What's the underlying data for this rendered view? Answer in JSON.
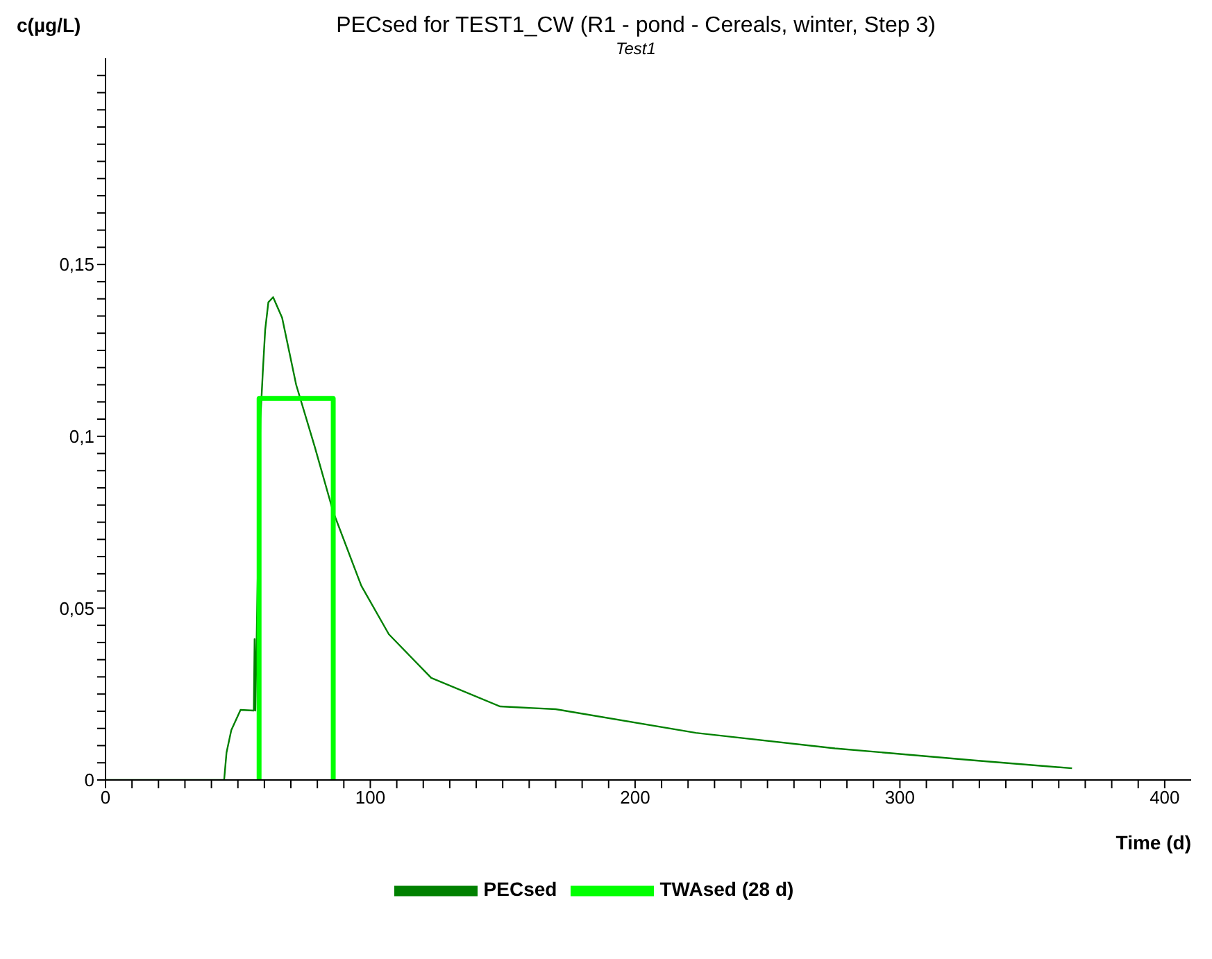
{
  "chart_data": {
    "type": "line",
    "title": "PECsed for TEST1_CW (R1 - pond  - Cereals, winter, Step 3)",
    "subtitle": "Test1",
    "xlabel": "Time (d)",
    "ylabel": "c(µg/L)",
    "xlim": [
      0,
      410
    ],
    "ylim": [
      0,
      0.21
    ],
    "xticks": [
      0,
      {
        "value": 10,
        "label": null
      },
      {
        "value": 20,
        "label": null
      },
      {
        "value": 30,
        "label": null
      },
      {
        "value": 40,
        "label": null
      },
      {
        "value": 50,
        "label": null
      },
      {
        "value": 60,
        "label": null
      },
      {
        "value": 70,
        "label": null
      },
      {
        "value": 80,
        "label": null
      },
      {
        "value": 90,
        "label": null
      },
      100,
      {
        "value": 110,
        "label": null
      },
      {
        "value": 120,
        "label": null
      },
      {
        "value": 130,
        "label": null
      },
      {
        "value": 140,
        "label": null
      },
      {
        "value": 150,
        "label": null
      },
      {
        "value": 160,
        "label": null
      },
      {
        "value": 170,
        "label": null
      },
      {
        "value": 180,
        "label": null
      },
      {
        "value": 190,
        "label": null
      },
      200,
      {
        "value": 210,
        "label": null
      },
      {
        "value": 220,
        "label": null
      },
      {
        "value": 230,
        "label": null
      },
      {
        "value": 240,
        "label": null
      },
      {
        "value": 250,
        "label": null
      },
      {
        "value": 260,
        "label": null
      },
      {
        "value": 270,
        "label": null
      },
      {
        "value": 280,
        "label": null
      },
      {
        "value": 290,
        "label": null
      },
      300,
      {
        "value": 310,
        "label": null
      },
      {
        "value": 320,
        "label": null
      },
      {
        "value": 330,
        "label": null
      },
      {
        "value": 340,
        "label": null
      },
      {
        "value": 350,
        "label": null
      },
      {
        "value": 360,
        "label": null
      },
      {
        "value": 370,
        "label": null
      },
      {
        "value": 380,
        "label": null
      },
      {
        "value": 390,
        "label": null
      },
      400
    ],
    "yticks": [
      0,
      {
        "value": 0.005,
        "label": null
      },
      {
        "value": 0.01,
        "label": null
      },
      {
        "value": 0.015,
        "label": null
      },
      {
        "value": 0.02,
        "label": null
      },
      {
        "value": 0.025,
        "label": null
      },
      {
        "value": 0.03,
        "label": null
      },
      {
        "value": 0.035,
        "label": null
      },
      {
        "value": 0.04,
        "label": null
      },
      {
        "value": 0.045,
        "label": null
      },
      {
        "value": 0.05,
        "label": "0,05"
      },
      {
        "value": 0.055,
        "label": null
      },
      {
        "value": 0.06,
        "label": null
      },
      {
        "value": 0.065,
        "label": null
      },
      {
        "value": 0.07,
        "label": null
      },
      {
        "value": 0.075,
        "label": null
      },
      {
        "value": 0.08,
        "label": null
      },
      {
        "value": 0.085,
        "label": null
      },
      {
        "value": 0.09,
        "label": null
      },
      {
        "value": 0.095,
        "label": null
      },
      {
        "value": 0.1,
        "label": "0,1"
      },
      {
        "value": 0.105,
        "label": null
      },
      {
        "value": 0.11,
        "label": null
      },
      {
        "value": 0.115,
        "label": null
      },
      {
        "value": 0.12,
        "label": null
      },
      {
        "value": 0.125,
        "label": null
      },
      {
        "value": 0.13,
        "label": null
      },
      {
        "value": 0.135,
        "label": null
      },
      {
        "value": 0.14,
        "label": null
      },
      {
        "value": 0.145,
        "label": null
      },
      {
        "value": 0.15,
        "label": "0,15"
      },
      {
        "value": 0.155,
        "label": null
      },
      {
        "value": 0.16,
        "label": null
      },
      {
        "value": 0.165,
        "label": null
      },
      {
        "value": 0.17,
        "label": null
      },
      {
        "value": 0.175,
        "label": null
      },
      {
        "value": 0.18,
        "label": null
      },
      {
        "value": 0.185,
        "label": null
      },
      {
        "value": 0.19,
        "label": null
      },
      {
        "value": 0.195,
        "label": null
      },
      {
        "value": 0.2,
        "label": null
      },
      {
        "value": 0.205,
        "label": null
      }
    ],
    "legend": "bottom",
    "marker": "none",
    "line_style": "solid",
    "series": [
      {
        "name": "PECsed",
        "color": "#008000",
        "x": [
          0,
          44.8,
          45.7,
          47.5,
          51,
          56,
          56.3,
          56.6,
          58.5,
          59.4,
          60.3,
          61.5,
          63.3,
          66.7,
          72,
          79,
          86,
          96.6,
          107,
          123,
          149,
          170,
          223,
          275.5,
          328,
          365
        ],
        "values": [
          0,
          0,
          0.008,
          0.0145,
          0.0204,
          0.0202,
          0.041,
          0.0202,
          0.105,
          0.1187,
          0.131,
          0.139,
          0.1405,
          0.1345,
          0.115,
          0.097,
          0.078,
          0.0565,
          0.0424,
          0.0297,
          0.0214,
          0.0206,
          0.0137,
          0.0092,
          0.0057,
          0.0034
        ]
      },
      {
        "name": "TWAsed  (28 d)",
        "color": "#00ff00",
        "x": [
          58,
          58,
          86,
          86
        ],
        "values": [
          0,
          0.111,
          0.111,
          0
        ]
      }
    ]
  }
}
